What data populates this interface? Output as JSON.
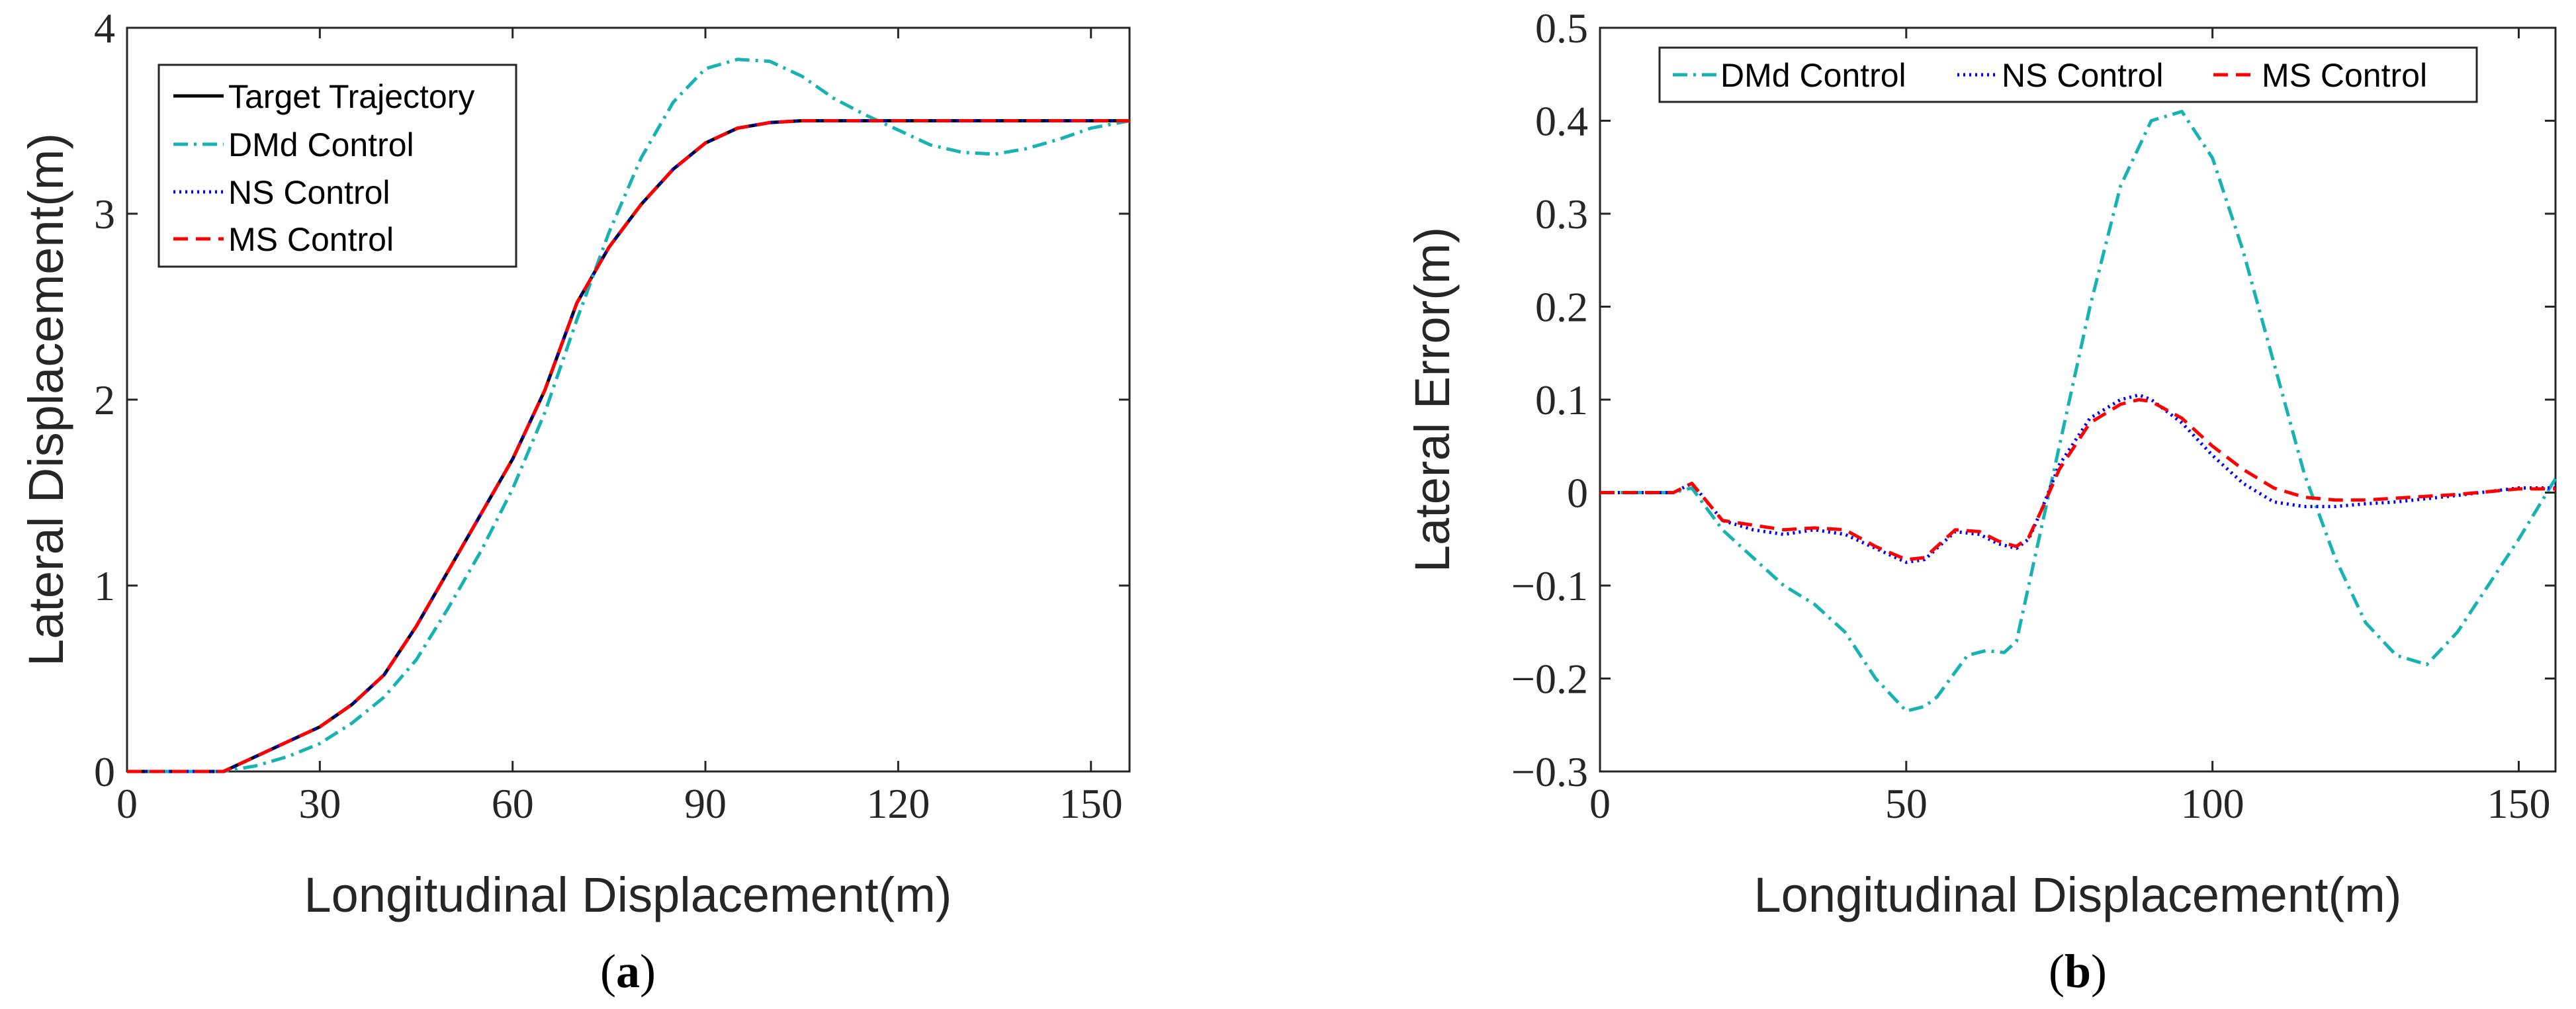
{
  "chart_data": [
    {
      "id": "a",
      "type": "line",
      "caption": "a",
      "xlabel": "Longitudinal Displacement(m)",
      "ylabel": "Lateral Displacement(m)",
      "xlim": [
        0,
        156
      ],
      "ylim": [
        0,
        4
      ],
      "xticks": [
        0,
        30,
        60,
        90,
        120,
        150
      ],
      "yticks": [
        0,
        1,
        2,
        3,
        4
      ],
      "grid": false,
      "legend_position": "top-left",
      "series": [
        {
          "name": "Target Trajectory",
          "color": "#000000",
          "dash": "solid",
          "x": [
            0,
            15,
            20,
            25,
            30,
            35,
            40,
            45,
            50,
            55,
            60,
            65,
            70,
            75,
            80,
            85,
            90,
            95,
            100,
            105,
            110,
            120,
            130,
            140,
            150,
            156
          ],
          "y": [
            0,
            0,
            0.08,
            0.16,
            0.24,
            0.36,
            0.52,
            0.78,
            1.08,
            1.38,
            1.68,
            2.05,
            2.52,
            2.82,
            3.05,
            3.24,
            3.38,
            3.46,
            3.49,
            3.5,
            3.5,
            3.5,
            3.5,
            3.5,
            3.5,
            3.5
          ]
        },
        {
          "name": "DMd Control",
          "color": "#17B2B2",
          "dash": "dashdot",
          "x": [
            0,
            15,
            20,
            25,
            30,
            35,
            40,
            45,
            50,
            55,
            60,
            65,
            70,
            75,
            80,
            85,
            90,
            95,
            100,
            105,
            110,
            115,
            120,
            125,
            130,
            135,
            140,
            145,
            150,
            156
          ],
          "y": [
            0,
            0,
            0.03,
            0.08,
            0.15,
            0.26,
            0.4,
            0.6,
            0.88,
            1.18,
            1.52,
            1.93,
            2.43,
            2.9,
            3.3,
            3.6,
            3.78,
            3.83,
            3.82,
            3.74,
            3.62,
            3.53,
            3.45,
            3.37,
            3.33,
            3.32,
            3.35,
            3.4,
            3.46,
            3.5
          ]
        },
        {
          "name": "NS Control",
          "color": "#0000FF",
          "dash": "dotted",
          "x": [
            0,
            15,
            20,
            25,
            30,
            35,
            40,
            45,
            50,
            55,
            60,
            65,
            70,
            75,
            80,
            85,
            90,
            95,
            100,
            105,
            110,
            120,
            130,
            140,
            150,
            156
          ],
          "y": [
            0,
            0,
            0.08,
            0.16,
            0.24,
            0.36,
            0.52,
            0.78,
            1.08,
            1.38,
            1.68,
            2.05,
            2.52,
            2.82,
            3.05,
            3.24,
            3.38,
            3.46,
            3.49,
            3.5,
            3.5,
            3.5,
            3.5,
            3.5,
            3.5,
            3.5
          ]
        },
        {
          "name": "MS Control",
          "color": "#FF0000",
          "dash": "dashed",
          "x": [
            0,
            15,
            20,
            25,
            30,
            35,
            40,
            45,
            50,
            55,
            60,
            65,
            70,
            75,
            80,
            85,
            90,
            95,
            100,
            105,
            110,
            120,
            130,
            140,
            150,
            156
          ],
          "y": [
            0,
            0,
            0.08,
            0.16,
            0.24,
            0.36,
            0.52,
            0.78,
            1.08,
            1.38,
            1.68,
            2.05,
            2.52,
            2.82,
            3.05,
            3.24,
            3.38,
            3.46,
            3.49,
            3.5,
            3.5,
            3.5,
            3.5,
            3.5,
            3.5,
            3.5
          ]
        }
      ]
    },
    {
      "id": "b",
      "type": "line",
      "caption": "b",
      "xlabel": "Longitudinal Displacement(m)",
      "ylabel": "Lateral Error(m)",
      "xlim": [
        0,
        156
      ],
      "ylim": [
        -0.3,
        0.5
      ],
      "xticks": [
        0,
        50,
        100,
        150
      ],
      "yticks": [
        -0.3,
        -0.2,
        -0.1,
        0,
        0.1,
        0.2,
        0.3,
        0.4,
        0.5
      ],
      "ytick_labels": [
        "−0.3",
        "−0.2",
        "−0.1",
        "0",
        "0.1",
        "0.2",
        "0.3",
        "0.4",
        "0.5"
      ],
      "grid": false,
      "legend_position": "top",
      "series": [
        {
          "name": "DMd Control",
          "color": "#17B2B2",
          "dash": "dashdot",
          "x": [
            0,
            12,
            15,
            20,
            25,
            30,
            35,
            40,
            45,
            50,
            53,
            55,
            60,
            63,
            66,
            68,
            70,
            75,
            80,
            85,
            90,
            95,
            100,
            105,
            110,
            115,
            120,
            125,
            130,
            135,
            140,
            145,
            150,
            156
          ],
          "y": [
            0,
            0,
            0.005,
            -0.04,
            -0.07,
            -0.1,
            -0.12,
            -0.15,
            -0.2,
            -0.235,
            -0.23,
            -0.22,
            -0.175,
            -0.17,
            -0.172,
            -0.16,
            -0.1,
            0.05,
            0.2,
            0.33,
            0.4,
            0.41,
            0.36,
            0.26,
            0.14,
            0.02,
            -0.07,
            -0.14,
            -0.175,
            -0.185,
            -0.15,
            -0.1,
            -0.05,
            0.015
          ]
        },
        {
          "name": "NS Control",
          "color": "#0000FF",
          "dash": "dotted",
          "x": [
            0,
            12,
            15,
            20,
            25,
            30,
            35,
            40,
            45,
            50,
            53,
            55,
            58,
            62,
            65,
            68,
            70,
            72,
            75,
            80,
            85,
            88,
            90,
            95,
            100,
            105,
            110,
            115,
            120,
            125,
            130,
            140,
            150,
            156
          ],
          "y": [
            0,
            0,
            0.01,
            -0.03,
            -0.04,
            -0.045,
            -0.04,
            -0.045,
            -0.06,
            -0.075,
            -0.072,
            -0.06,
            -0.042,
            -0.045,
            -0.055,
            -0.06,
            -0.05,
            -0.02,
            0.03,
            0.08,
            0.1,
            0.105,
            0.1,
            0.075,
            0.04,
            0.01,
            -0.01,
            -0.015,
            -0.015,
            -0.012,
            -0.01,
            -0.003,
            0.005,
            0.005
          ]
        },
        {
          "name": "MS Control",
          "color": "#FF0000",
          "dash": "dashed",
          "x": [
            0,
            12,
            15,
            20,
            25,
            30,
            35,
            40,
            45,
            50,
            53,
            55,
            58,
            62,
            65,
            68,
            70,
            72,
            75,
            80,
            85,
            88,
            90,
            95,
            100,
            105,
            110,
            115,
            120,
            125,
            130,
            140,
            150,
            156
          ],
          "y": [
            0,
            0,
            0.01,
            -0.03,
            -0.035,
            -0.04,
            -0.038,
            -0.04,
            -0.058,
            -0.072,
            -0.07,
            -0.058,
            -0.04,
            -0.042,
            -0.052,
            -0.058,
            -0.048,
            -0.02,
            0.025,
            0.075,
            0.095,
            0.1,
            0.098,
            0.08,
            0.05,
            0.025,
            0.005,
            -0.005,
            -0.008,
            -0.008,
            -0.006,
            -0.002,
            0.004,
            0.004
          ]
        }
      ]
    }
  ]
}
